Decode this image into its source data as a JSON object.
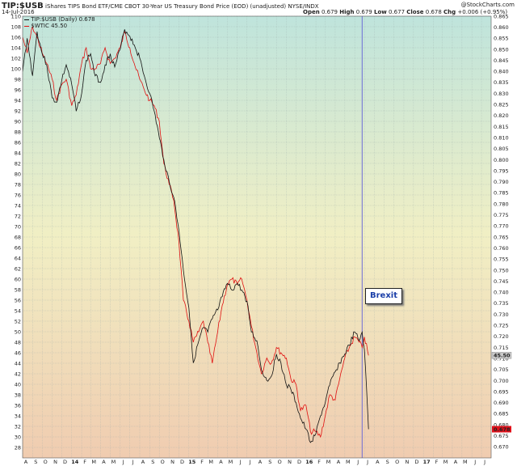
{
  "header": {
    "symbol": "TIP:$USB",
    "description": "iShares TIPS Bond ETF/CME CBOT 30-Year US Treasury Bond Price (EOD) (unadjusted)",
    "exchange": "NYSE/INDX",
    "watermark": "@StockCharts.com",
    "date": "14-Jul-2016",
    "open_label": "Open",
    "open_value": "0.679",
    "high_label": "High",
    "high_value": "0.679",
    "low_label": "Low",
    "low_value": "0.677",
    "close_label": "Close",
    "close_value": "0.678",
    "chg_label": "Chg",
    "chg_value": "+0.006 (+0.95%)"
  },
  "legend": {
    "series1_label": "TIP:$USB (Daily) 0.678",
    "series2_label": "$WTIC 45.50"
  },
  "annotation": {
    "event_label": "Brexit",
    "event_date": "2016-06-24"
  },
  "colors": {
    "ratio_series": "#111111",
    "wtic_series": "#e01010",
    "event_line": "#6b6bd6",
    "ratio_badge": "#e0101a",
    "wtic_badge": "#c8c8c8"
  },
  "chart_data": {
    "type": "line",
    "title": "TIP:$USB",
    "x_range": [
      "2013-08-01",
      "2017-07-31"
    ],
    "left_axis": {
      "range": [
        26,
        110
      ],
      "ticks": [
        28,
        30,
        32,
        34,
        36,
        38,
        40,
        42,
        44,
        46,
        48,
        50,
        52,
        54,
        56,
        58,
        60,
        62,
        64,
        66,
        68,
        70,
        72,
        74,
        76,
        78,
        80,
        82,
        84,
        86,
        88,
        90,
        92,
        94,
        96,
        98,
        100,
        102,
        104,
        106,
        108,
        110
      ]
    },
    "right_axis": {
      "range": [
        0.665,
        0.865
      ],
      "ticks": [
        "0.670",
        "0.675",
        "0.680",
        "0.685",
        "0.690",
        "0.695",
        "0.700",
        "0.705",
        "0.710",
        "0.715",
        "0.720",
        "0.725",
        "0.730",
        "0.735",
        "0.740",
        "0.745",
        "0.750",
        "0.755",
        "0.760",
        "0.765",
        "0.770",
        "0.775",
        "0.780",
        "0.785",
        "0.790",
        "0.795",
        "0.800",
        "0.805",
        "0.810",
        "0.815",
        "0.820",
        "0.825",
        "0.830",
        "0.835",
        "0.840",
        "0.845",
        "0.850",
        "0.855",
        "0.860",
        "0.865"
      ],
      "last_badge": "0.678"
    },
    "left_last_badge": "45.50",
    "x_ticks": [
      {
        "label": "A",
        "date": "2013-08-01"
      },
      {
        "label": "S",
        "date": "2013-09-01"
      },
      {
        "label": "O",
        "date": "2013-10-01"
      },
      {
        "label": "N",
        "date": "2013-11-01"
      },
      {
        "label": "D",
        "date": "2013-12-01"
      },
      {
        "label": "14",
        "date": "2014-01-01",
        "bold": true
      },
      {
        "label": "F",
        "date": "2014-02-01"
      },
      {
        "label": "M",
        "date": "2014-03-01"
      },
      {
        "label": "A",
        "date": "2014-04-01"
      },
      {
        "label": "M",
        "date": "2014-05-01"
      },
      {
        "label": "J",
        "date": "2014-06-01"
      },
      {
        "label": "J",
        "date": "2014-07-01"
      },
      {
        "label": "A",
        "date": "2014-08-01"
      },
      {
        "label": "S",
        "date": "2014-09-01"
      },
      {
        "label": "O",
        "date": "2014-10-01"
      },
      {
        "label": "N",
        "date": "2014-11-01"
      },
      {
        "label": "D",
        "date": "2014-12-01"
      },
      {
        "label": "15",
        "date": "2015-01-01",
        "bold": true
      },
      {
        "label": "F",
        "date": "2015-02-01"
      },
      {
        "label": "M",
        "date": "2015-03-01"
      },
      {
        "label": "A",
        "date": "2015-04-01"
      },
      {
        "label": "M",
        "date": "2015-05-01"
      },
      {
        "label": "J",
        "date": "2015-06-01"
      },
      {
        "label": "J",
        "date": "2015-07-01"
      },
      {
        "label": "A",
        "date": "2015-08-01"
      },
      {
        "label": "S",
        "date": "2015-09-01"
      },
      {
        "label": "O",
        "date": "2015-10-01"
      },
      {
        "label": "N",
        "date": "2015-11-01"
      },
      {
        "label": "D",
        "date": "2015-12-01"
      },
      {
        "label": "16",
        "date": "2016-01-01",
        "bold": true
      },
      {
        "label": "F",
        "date": "2016-02-01"
      },
      {
        "label": "M",
        "date": "2016-03-01"
      },
      {
        "label": "A",
        "date": "2016-04-01"
      },
      {
        "label": "M",
        "date": "2016-05-01"
      },
      {
        "label": "J",
        "date": "2016-06-01"
      },
      {
        "label": "J",
        "date": "2016-07-01"
      },
      {
        "label": "A",
        "date": "2016-08-01"
      },
      {
        "label": "S",
        "date": "2016-09-01"
      },
      {
        "label": "O",
        "date": "2016-10-01"
      },
      {
        "label": "N",
        "date": "2016-11-01"
      },
      {
        "label": "D",
        "date": "2016-12-01"
      },
      {
        "label": "17",
        "date": "2017-01-01",
        "bold": true
      },
      {
        "label": "F",
        "date": "2017-02-01"
      },
      {
        "label": "M",
        "date": "2017-03-01"
      },
      {
        "label": "A",
        "date": "2017-04-01"
      },
      {
        "label": "M",
        "date": "2017-05-01"
      },
      {
        "label": "J",
        "date": "2017-06-01"
      },
      {
        "label": "J",
        "date": "2017-07-01"
      }
    ],
    "series": [
      {
        "name": "TIP:$USB (Daily) 0.678",
        "axis": "right",
        "points": [
          [
            "2013-08-01",
            0.84
          ],
          [
            "2013-08-15",
            0.855
          ],
          [
            "2013-09-01",
            0.838
          ],
          [
            "2013-09-15",
            0.858
          ],
          [
            "2013-10-01",
            0.848
          ],
          [
            "2013-10-15",
            0.843
          ],
          [
            "2013-11-01",
            0.828
          ],
          [
            "2013-11-15",
            0.826
          ],
          [
            "2013-12-01",
            0.836
          ],
          [
            "2013-12-15",
            0.843
          ],
          [
            "2014-01-01",
            0.834
          ],
          [
            "2014-01-15",
            0.822
          ],
          [
            "2014-02-01",
            0.83
          ],
          [
            "2014-02-15",
            0.845
          ],
          [
            "2014-03-01",
            0.848
          ],
          [
            "2014-03-15",
            0.838
          ],
          [
            "2014-04-01",
            0.835
          ],
          [
            "2014-04-15",
            0.843
          ],
          [
            "2014-05-01",
            0.848
          ],
          [
            "2014-05-15",
            0.842
          ],
          [
            "2014-06-01",
            0.85
          ],
          [
            "2014-06-15",
            0.859
          ],
          [
            "2014-07-01",
            0.856
          ],
          [
            "2014-07-15",
            0.852
          ],
          [
            "2014-08-01",
            0.846
          ],
          [
            "2014-08-15",
            0.838
          ],
          [
            "2014-09-01",
            0.83
          ],
          [
            "2014-09-15",
            0.822
          ],
          [
            "2014-10-01",
            0.81
          ],
          [
            "2014-10-15",
            0.8
          ],
          [
            "2014-11-01",
            0.79
          ],
          [
            "2014-11-15",
            0.783
          ],
          [
            "2014-12-01",
            0.768
          ],
          [
            "2014-12-15",
            0.75
          ],
          [
            "2015-01-01",
            0.733
          ],
          [
            "2015-01-15",
            0.708
          ],
          [
            "2015-02-01",
            0.718
          ],
          [
            "2015-02-15",
            0.724
          ],
          [
            "2015-03-01",
            0.722
          ],
          [
            "2015-03-15",
            0.728
          ],
          [
            "2015-04-01",
            0.732
          ],
          [
            "2015-04-15",
            0.738
          ],
          [
            "2015-05-01",
            0.744
          ],
          [
            "2015-05-15",
            0.741
          ],
          [
            "2015-06-01",
            0.744
          ],
          [
            "2015-06-15",
            0.741
          ],
          [
            "2015-07-01",
            0.736
          ],
          [
            "2015-07-15",
            0.722
          ],
          [
            "2015-08-01",
            0.718
          ],
          [
            "2015-08-15",
            0.705
          ],
          [
            "2015-09-01",
            0.7
          ],
          [
            "2015-09-15",
            0.702
          ],
          [
            "2015-10-01",
            0.712
          ],
          [
            "2015-10-15",
            0.708
          ],
          [
            "2015-11-01",
            0.698
          ],
          [
            "2015-11-15",
            0.696
          ],
          [
            "2015-12-01",
            0.69
          ],
          [
            "2015-12-15",
            0.683
          ],
          [
            "2016-01-01",
            0.678
          ],
          [
            "2016-01-15",
            0.672
          ],
          [
            "2016-02-01",
            0.676
          ],
          [
            "2016-02-15",
            0.684
          ],
          [
            "2016-03-01",
            0.69
          ],
          [
            "2016-03-15",
            0.698
          ],
          [
            "2016-04-01",
            0.704
          ],
          [
            "2016-04-15",
            0.708
          ],
          [
            "2016-05-01",
            0.712
          ],
          [
            "2016-05-15",
            0.716
          ],
          [
            "2016-06-01",
            0.722
          ],
          [
            "2016-06-15",
            0.718
          ],
          [
            "2016-06-24",
            0.722
          ],
          [
            "2016-07-01",
            0.714
          ],
          [
            "2016-07-14",
            0.678
          ]
        ]
      },
      {
        "name": "$WTIC 45.50",
        "axis": "left",
        "points": [
          [
            "2013-08-01",
            106
          ],
          [
            "2013-08-15",
            103
          ],
          [
            "2013-09-01",
            108
          ],
          [
            "2013-09-15",
            106
          ],
          [
            "2013-10-01",
            103
          ],
          [
            "2013-10-15",
            101
          ],
          [
            "2013-11-01",
            98
          ],
          [
            "2013-11-15",
            94
          ],
          [
            "2013-12-01",
            97
          ],
          [
            "2013-12-15",
            98
          ],
          [
            "2014-01-01",
            93
          ],
          [
            "2014-01-15",
            95
          ],
          [
            "2014-02-01",
            101
          ],
          [
            "2014-02-15",
            104
          ],
          [
            "2014-03-01",
            100
          ],
          [
            "2014-03-15",
            100
          ],
          [
            "2014-04-01",
            101
          ],
          [
            "2014-04-15",
            104
          ],
          [
            "2014-05-01",
            101
          ],
          [
            "2014-05-15",
            102
          ],
          [
            "2014-06-01",
            104
          ],
          [
            "2014-06-15",
            107
          ],
          [
            "2014-07-01",
            104
          ],
          [
            "2014-07-15",
            101
          ],
          [
            "2014-08-01",
            98
          ],
          [
            "2014-08-15",
            96
          ],
          [
            "2014-09-01",
            94
          ],
          [
            "2014-09-15",
            93
          ],
          [
            "2014-10-01",
            90
          ],
          [
            "2014-10-15",
            82
          ],
          [
            "2014-11-01",
            78
          ],
          [
            "2014-11-15",
            75
          ],
          [
            "2014-12-01",
            67
          ],
          [
            "2014-12-15",
            56
          ],
          [
            "2015-01-01",
            52
          ],
          [
            "2015-01-15",
            48
          ],
          [
            "2015-02-01",
            50
          ],
          [
            "2015-02-15",
            52
          ],
          [
            "2015-03-01",
            48
          ],
          [
            "2015-03-15",
            44
          ],
          [
            "2015-04-01",
            50
          ],
          [
            "2015-04-15",
            55
          ],
          [
            "2015-05-01",
            59
          ],
          [
            "2015-05-15",
            60
          ],
          [
            "2015-06-01",
            59
          ],
          [
            "2015-06-15",
            60
          ],
          [
            "2015-07-01",
            56
          ],
          [
            "2015-07-15",
            51
          ],
          [
            "2015-08-01",
            46
          ],
          [
            "2015-08-15",
            42
          ],
          [
            "2015-09-01",
            45
          ],
          [
            "2015-09-15",
            44
          ],
          [
            "2015-10-01",
            47
          ],
          [
            "2015-10-15",
            46
          ],
          [
            "2015-11-01",
            45
          ],
          [
            "2015-11-15",
            41
          ],
          [
            "2015-12-01",
            40
          ],
          [
            "2015-12-15",
            35
          ],
          [
            "2016-01-01",
            36
          ],
          [
            "2016-01-15",
            31
          ],
          [
            "2016-02-01",
            31
          ],
          [
            "2016-02-15",
            30
          ],
          [
            "2016-03-01",
            34
          ],
          [
            "2016-03-15",
            38
          ],
          [
            "2016-04-01",
            37
          ],
          [
            "2016-04-15",
            41
          ],
          [
            "2016-05-01",
            45
          ],
          [
            "2016-05-15",
            47
          ],
          [
            "2016-06-01",
            49
          ],
          [
            "2016-06-15",
            48
          ],
          [
            "2016-06-24",
            47
          ],
          [
            "2016-07-01",
            49
          ],
          [
            "2016-07-14",
            45.5
          ]
        ]
      }
    ]
  }
}
